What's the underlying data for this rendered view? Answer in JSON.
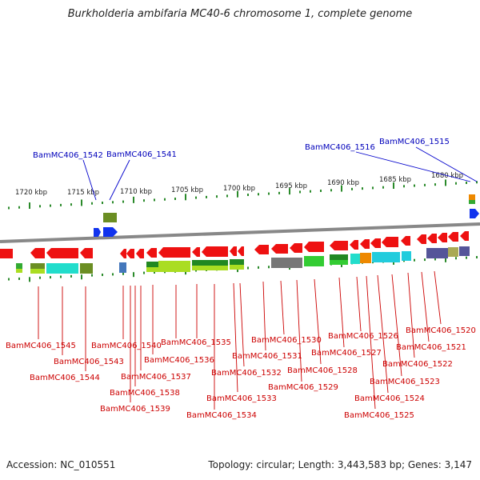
{
  "title": "Burkholderia ambifaria MC40-6 chromosome 1, complete genome",
  "footer": {
    "accession": "Accession: NC_010551",
    "summary": "Topology: circular; Length: 3,443,583 bp; Genes: 3,147"
  },
  "scale_labels": [
    "1720 kbp",
    "1715 kbp",
    "1710 kbp",
    "1705 kbp",
    "1700 kbp",
    "1695 kbp",
    "1690 kbp",
    "1685 kbp",
    "1680 kbp"
  ],
  "top_labels": [
    "BamMC406_1542",
    "BamMC406_1541",
    "BamMC406_1516",
    "BamMC406_1515"
  ],
  "bottom_labels": [
    "BamMC406_1545",
    "BamMC406_1543",
    "BamMC406_1544",
    "BamMC406_1540",
    "BamMC406_1539",
    "BamMC406_1538",
    "BamMC406_1537",
    "BamMC406_1536",
    "BamMC406_1535",
    "BamMC406_1534",
    "BamMC406_1533",
    "BamMC406_1532",
    "BamMC406_1531",
    "BamMC406_1530",
    "BamMC406_1529",
    "BamMC406_1528",
    "BamMC406_1527",
    "BamMC406_1526",
    "BamMC406_1525",
    "BamMC406_1524",
    "BamMC406_1523",
    "BamMC406_1522",
    "BamMC406_1521",
    "BamMC406_1520"
  ],
  "colors": {
    "reverse_gene": "#ee1111",
    "forward_gene": "#1133ee",
    "backbone": "#888888",
    "tick": "#2a8a2a",
    "label_red": "#cc0000",
    "label_blue": "#0000bb"
  }
}
